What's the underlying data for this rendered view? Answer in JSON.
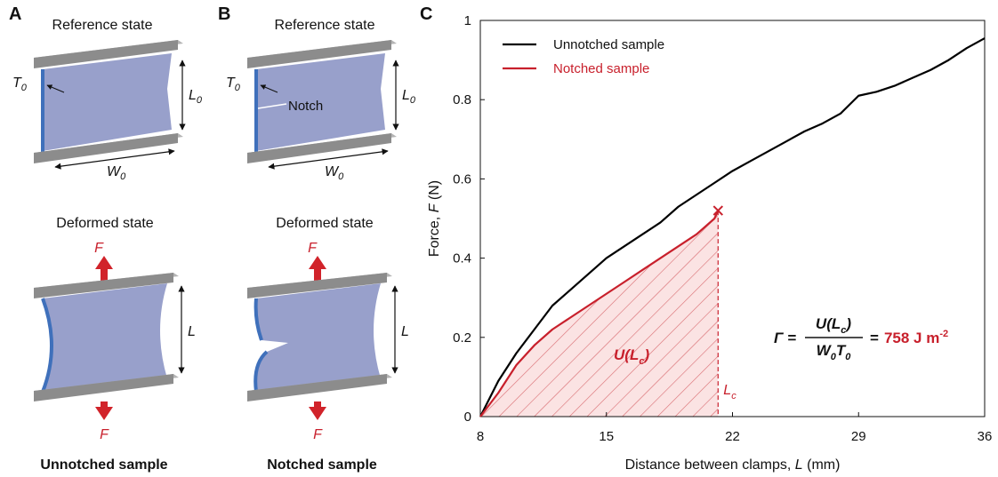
{
  "panels": {
    "a": {
      "label": "A",
      "reference_title": "Reference state",
      "t0": [
        "T",
        "0"
      ],
      "l0": [
        "L",
        "0"
      ],
      "w0": [
        "W",
        "0"
      ],
      "deformed_title": "Deformed state",
      "force_top": "F",
      "force_bottom": "F",
      "length": "L",
      "caption": "Unnotched sample"
    },
    "b": {
      "label": "B",
      "reference_title": "Reference state",
      "t0": [
        "T",
        "0"
      ],
      "l0": [
        "L",
        "0"
      ],
      "w0": [
        "W",
        "0"
      ],
      "notch": "Notch",
      "deformed_title": "Deformed state",
      "force_top": "F",
      "force_bottom": "F",
      "length": "L",
      "caption": "Notched sample"
    }
  },
  "chart_data": {
    "panel_label": "C",
    "type": "line",
    "xlabel": [
      "Distance between clamps, ",
      "L",
      " (mm)"
    ],
    "ylabel": [
      "Force, ",
      "F",
      " (N)"
    ],
    "xlim": [
      8,
      36
    ],
    "xticks": [
      8,
      15,
      22,
      29,
      36
    ],
    "ylim": [
      0,
      1
    ],
    "yticks": [
      0,
      0.2,
      0.4,
      0.6,
      0.8,
      1
    ],
    "legend": "upper left",
    "series": [
      {
        "name": "Unnotched sample",
        "color": "#000000",
        "x": [
          8,
          9,
          10,
          11,
          12,
          13,
          14,
          15,
          16,
          17,
          18,
          19,
          20,
          21,
          22,
          23,
          24,
          25,
          26,
          27,
          28,
          29,
          30,
          31,
          32,
          33,
          34,
          35,
          36
        ],
        "values": [
          0,
          0.09,
          0.16,
          0.22,
          0.28,
          0.32,
          0.36,
          0.4,
          0.43,
          0.46,
          0.49,
          0.53,
          0.56,
          0.59,
          0.62,
          0.645,
          0.67,
          0.695,
          0.72,
          0.74,
          0.765,
          0.81,
          0.82,
          0.835,
          0.855,
          0.875,
          0.9,
          0.93,
          0.955
        ]
      },
      {
        "name": "Notched sample",
        "color": "#c8202c",
        "x": [
          8,
          9,
          10,
          11,
          12,
          13,
          14,
          15,
          16,
          17,
          18,
          19,
          20,
          21,
          21.2
        ],
        "values": [
          0,
          0.06,
          0.13,
          0.18,
          0.22,
          0.25,
          0.28,
          0.31,
          0.34,
          0.37,
          0.4,
          0.43,
          0.46,
          0.5,
          0.52
        ]
      }
    ],
    "critical_length": {
      "x": 21.2,
      "label": [
        "L",
        "c"
      ]
    },
    "area_label": [
      "U(",
      "L",
      "c",
      ")"
    ],
    "equation": {
      "lhs": "Γ =",
      "numerator": [
        "U(",
        "L",
        "c",
        ")"
      ],
      "denominator": [
        "W",
        "0",
        "T",
        "0"
      ],
      "equals": "=",
      "value": "758 J m",
      "exponent": "-2"
    }
  }
}
